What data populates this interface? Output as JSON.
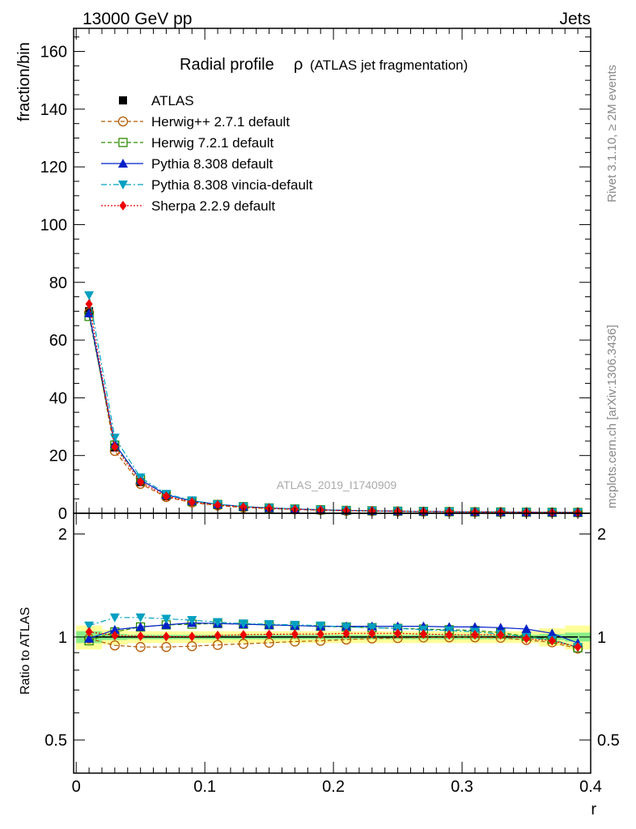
{
  "header": {
    "left": "13000 GeV pp",
    "right": "Jets"
  },
  "side": {
    "rivet": "Rivet 3.1.10, ≥ 2M events",
    "mcplots": "mcplots.cern.ch [arXiv:1306.3436]"
  },
  "watermark": "ATLAS_2019_I1740909",
  "chart_data": [
    {
      "type": "line",
      "title": "Radial profile",
      "title_symbol": "ρ",
      "title_suffix": "(ATLAS jet fragmentation)",
      "xlabel": "",
      "ylabel": "fraction/bin",
      "xlim": [
        -0.002,
        0.4
      ],
      "ylim": [
        0,
        168
      ],
      "yticks": [
        0,
        20,
        40,
        60,
        80,
        100,
        120,
        140,
        160
      ],
      "legend_position": "top-left",
      "x": [
        0.01,
        0.03,
        0.05,
        0.07,
        0.09,
        0.11,
        0.13,
        0.15,
        0.17,
        0.19,
        0.21,
        0.23,
        0.25,
        0.27,
        0.29,
        0.31,
        0.33,
        0.35,
        0.37,
        0.39
      ],
      "series": [
        {
          "name": "ATLAS",
          "color": "#000000",
          "marker": "square",
          "values": [
            70,
            22.8,
            10.8,
            5.9,
            3.9,
            2.8,
            2.1,
            1.7,
            1.35,
            1.1,
            0.9,
            0.78,
            0.68,
            0.6,
            0.52,
            0.46,
            0.41,
            0.37,
            0.33,
            0.3
          ]
        },
        {
          "name": "Herwig++ 2.7.1 default",
          "color": "#b35900",
          "marker": "open-circle",
          "dash": "5,3",
          "values": [
            69.5,
            21.6,
            10.2,
            5.6,
            3.7,
            2.7,
            2.0,
            1.63,
            1.31,
            1.07,
            0.88,
            0.77,
            0.67,
            0.6,
            0.52,
            0.46,
            0.41,
            0.36,
            0.32,
            0.28
          ]
        },
        {
          "name": "Herwig 7.2.1 default",
          "color": "#2a8a00",
          "marker": "open-square",
          "dash": "5,3",
          "values": [
            68.2,
            23.6,
            11.6,
            6.4,
            4.2,
            3.05,
            2.3,
            1.85,
            1.47,
            1.2,
            0.98,
            0.84,
            0.73,
            0.65,
            0.56,
            0.49,
            0.43,
            0.38,
            0.33,
            0.28
          ]
        },
        {
          "name": "Pythia 8.308 default",
          "color": "#0020c8",
          "marker": "triangle-up",
          "values": [
            69.3,
            24.0,
            11.6,
            6.4,
            4.3,
            3.1,
            2.3,
            1.86,
            1.48,
            1.2,
            0.98,
            0.84,
            0.74,
            0.65,
            0.56,
            0.49,
            0.44,
            0.39,
            0.34,
            0.29
          ]
        },
        {
          "name": "Pythia 8.308 vincia-default",
          "color": "#00a0c0",
          "marker": "triangle-down",
          "dash": "7,3,2,3",
          "values": [
            75.5,
            26.2,
            12.4,
            6.7,
            4.4,
            3.1,
            2.3,
            1.87,
            1.48,
            1.2,
            0.98,
            0.84,
            0.73,
            0.65,
            0.55,
            0.48,
            0.42,
            0.37,
            0.33,
            0.28
          ]
        },
        {
          "name": "Sherpa 2.2.9 default",
          "color": "#ee0000",
          "marker": "diamond",
          "dash": "2,2",
          "values": [
            72.5,
            23.0,
            10.9,
            5.9,
            3.9,
            2.85,
            2.15,
            1.74,
            1.38,
            1.13,
            0.93,
            0.8,
            0.7,
            0.61,
            0.53,
            0.47,
            0.42,
            0.37,
            0.33,
            0.28
          ]
        }
      ]
    },
    {
      "type": "line",
      "title": "",
      "xlabel": "r",
      "ylabel": "Ratio to ATLAS",
      "xlim": [
        -0.002,
        0.4
      ],
      "ylim": [
        0.4,
        2.3
      ],
      "yscale": "log",
      "yticks": [
        0.5,
        1,
        2
      ],
      "xticks": [
        0,
        0.1,
        0.2,
        0.3,
        0.4
      ],
      "band_colors": [
        "#ffff99",
        "#88ee88"
      ],
      "band_outer": [
        0.08,
        0.05,
        0.04,
        0.04,
        0.04,
        0.04,
        0.04,
        0.04,
        0.04,
        0.04,
        0.04,
        0.04,
        0.04,
        0.04,
        0.04,
        0.04,
        0.04,
        0.04,
        0.06,
        0.08
      ],
      "band_inner": [
        0.04,
        0.02,
        0.015,
        0.015,
        0.015,
        0.015,
        0.015,
        0.015,
        0.015,
        0.015,
        0.015,
        0.015,
        0.015,
        0.015,
        0.015,
        0.015,
        0.015,
        0.015,
        0.02,
        0.03
      ],
      "x": [
        0.01,
        0.03,
        0.05,
        0.07,
        0.09,
        0.11,
        0.13,
        0.15,
        0.17,
        0.19,
        0.21,
        0.23,
        0.25,
        0.27,
        0.29,
        0.31,
        0.33,
        0.35,
        0.37,
        0.39
      ],
      "series": [
        {
          "name": "ATLAS",
          "color": "#000000",
          "marker": "none",
          "values": [
            1,
            1,
            1,
            1,
            1,
            1,
            1,
            1,
            1,
            1,
            1,
            1,
            1,
            1,
            1,
            1,
            1,
            1,
            1,
            1
          ]
        },
        {
          "name": "Herwig++ 2.7.1 default",
          "color": "#b35900",
          "marker": "open-circle",
          "dash": "5,3",
          "values": [
            0.99,
            0.945,
            0.935,
            0.935,
            0.94,
            0.948,
            0.955,
            0.962,
            0.97,
            0.975,
            0.983,
            0.99,
            0.993,
            0.997,
            0.998,
            0.998,
            0.995,
            0.98,
            0.965,
            0.925
          ]
        },
        {
          "name": "Herwig 7.2.1 default",
          "color": "#2a8a00",
          "marker": "open-square",
          "dash": "5,3",
          "values": [
            0.975,
            1.035,
            1.07,
            1.085,
            1.09,
            1.095,
            1.09,
            1.085,
            1.08,
            1.075,
            1.07,
            1.065,
            1.06,
            1.055,
            1.05,
            1.045,
            1.03,
            1.005,
            0.985,
            0.93
          ]
        },
        {
          "name": "Pythia 8.308 default",
          "color": "#0020c8",
          "marker": "triangle-up",
          "values": [
            0.99,
            1.05,
            1.07,
            1.085,
            1.1,
            1.095,
            1.09,
            1.085,
            1.08,
            1.075,
            1.075,
            1.075,
            1.075,
            1.075,
            1.07,
            1.07,
            1.065,
            1.055,
            1.025,
            0.96
          ]
        },
        {
          "name": "Pythia 8.308 vincia-default",
          "color": "#00a0c0",
          "marker": "triangle-down",
          "dash": "7,3,2,3",
          "values": [
            1.08,
            1.14,
            1.14,
            1.13,
            1.12,
            1.105,
            1.095,
            1.09,
            1.085,
            1.08,
            1.07,
            1.065,
            1.06,
            1.05,
            1.045,
            1.035,
            1.02,
            1.0,
            0.98,
            0.935
          ]
        },
        {
          "name": "Sherpa 2.2.9 default",
          "color": "#ee0000",
          "marker": "diamond",
          "dash": "2,2",
          "values": [
            1.035,
            1.01,
            1.005,
            1.003,
            1.003,
            1.01,
            1.015,
            1.018,
            1.02,
            1.02,
            1.025,
            1.025,
            1.025,
            1.02,
            1.015,
            1.015,
            1.015,
            0.99,
            0.975,
            0.935
          ]
        }
      ]
    }
  ]
}
